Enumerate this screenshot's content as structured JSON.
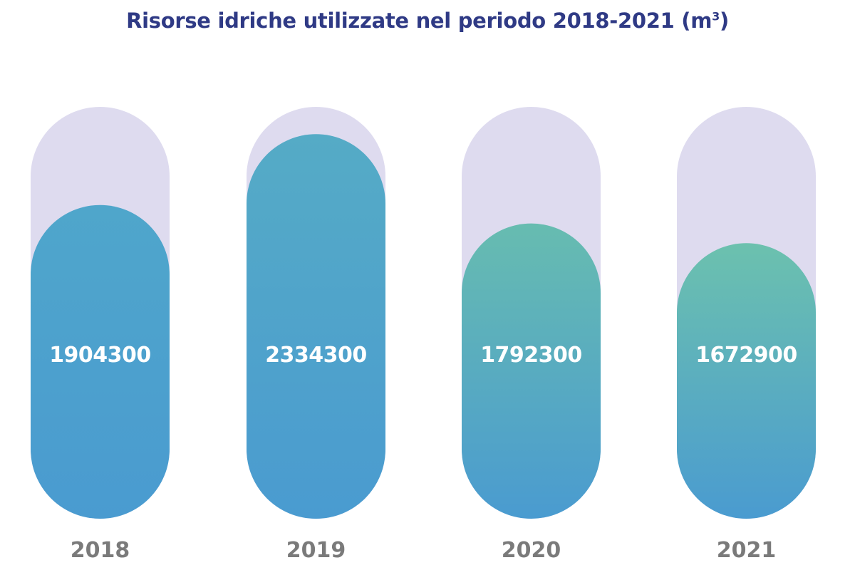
{
  "chart_data": {
    "type": "bar",
    "title": "Risorse idriche utilizzate nel periodo 2018-2021 (m",
    "title_superscript": "3",
    "title_suffix": ")",
    "categories": [
      "2018",
      "2019",
      "2020",
      "2021"
    ],
    "values": [
      1904300,
      2334300,
      1792300,
      1672900
    ],
    "value_labels": [
      "1904300",
      "2334300",
      "1792300",
      "1672900"
    ],
    "xlabel": "",
    "ylabel": "",
    "ylim": [
      0,
      2500000
    ],
    "grid": false,
    "legend": "none",
    "colors": {
      "track": "#dedbef",
      "title": "#2f3a85",
      "category_label": "#7a7a7a",
      "value_label": "#ffffff",
      "bar_gradients": [
        [
          "#4fa6cb",
          "#4a9bd0"
        ],
        [
          "#55abc6",
          "#4a9bd0"
        ],
        [
          "#67bcb0",
          "#4a9bd0"
        ],
        [
          "#6cc1ae",
          "#4a9bd0"
        ]
      ]
    }
  }
}
